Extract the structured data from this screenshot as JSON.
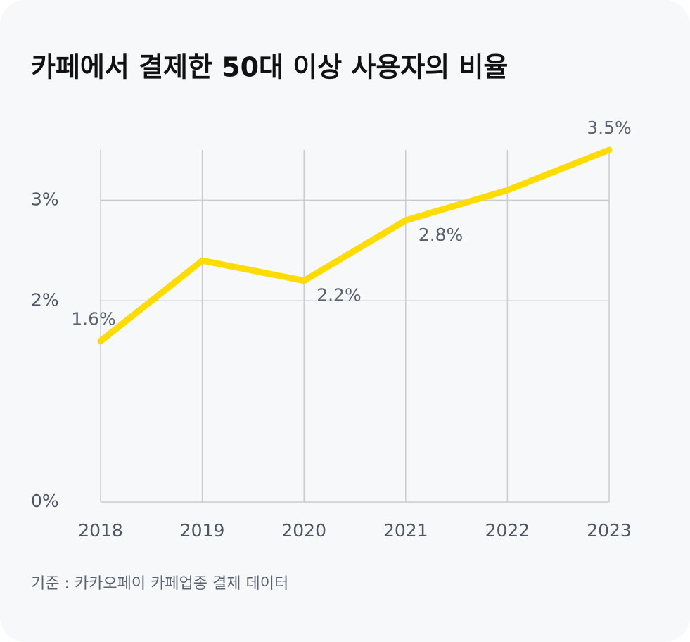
{
  "chart_data": {
    "type": "line",
    "title": "카페에서 결제한 50대 이상 사용자의 비율",
    "categories": [
      "2018",
      "2019",
      "2020",
      "2021",
      "2022",
      "2023"
    ],
    "series": [
      {
        "color": "#ffdc00",
        "values": [
          1.6,
          2.4,
          2.2,
          2.8,
          3.1,
          3.5
        ],
        "value_labels": [
          "1.6%",
          null,
          "2.2%",
          "2.8%",
          null,
          "3.5%"
        ]
      }
    ],
    "ylim": [
      0,
      3.5
    ],
    "yticks": [
      {
        "value": 0,
        "label": "0%"
      },
      {
        "value": 2,
        "label": "2%"
      },
      {
        "value": 3,
        "label": "3%"
      }
    ],
    "grid": true,
    "note": "기준 : 카카오페이 카페업종 결제 데이터"
  }
}
